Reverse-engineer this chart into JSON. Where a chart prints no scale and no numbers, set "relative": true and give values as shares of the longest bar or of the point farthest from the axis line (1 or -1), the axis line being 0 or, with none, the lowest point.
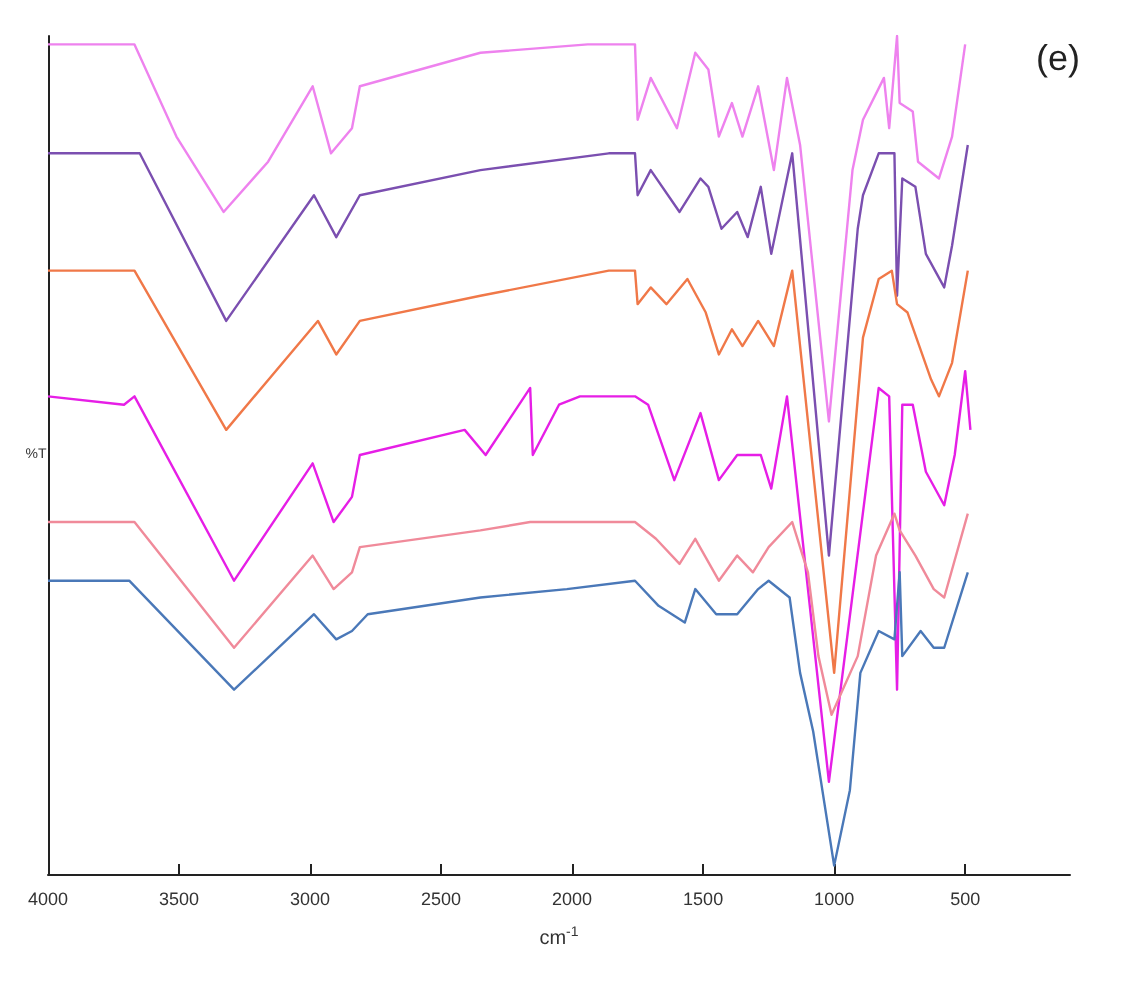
{
  "chart_data": {
    "type": "line",
    "relative": true,
    "xlabel": "cm$^{-1}$",
    "ylabel": "%T",
    "annotations": [
      "(e)"
    ],
    "xlim": [
      4000,
      100
    ],
    "xticks": [
      4000,
      3500,
      3000,
      2500,
      2000,
      1500,
      1000,
      500
    ],
    "marker": "none",
    "series": [
      {
        "color": "#ee82ee",
        "x": [
          4000,
          3670,
          3510,
          3330,
          3160,
          2990,
          2920,
          2840,
          2810,
          2350,
          1940,
          1760,
          1750,
          1700,
          1600,
          1530,
          1480,
          1440,
          1390,
          1350,
          1290,
          1230,
          1180,
          1130,
          1020,
          930,
          890,
          810,
          790,
          760,
          750,
          700,
          680,
          600,
          550,
          500
        ],
        "values": [
          0.99,
          0.99,
          0.88,
          0.79,
          0.85,
          0.94,
          0.86,
          0.89,
          0.94,
          0.98,
          0.99,
          0.99,
          0.9,
          0.95,
          0.89,
          0.98,
          0.96,
          0.88,
          0.92,
          0.88,
          0.94,
          0.84,
          0.95,
          0.87,
          0.54,
          0.84,
          0.9,
          0.95,
          0.89,
          1.0,
          0.92,
          0.91,
          0.85,
          0.83,
          0.88,
          0.99
        ]
      },
      {
        "color": "#7b4fb0",
        "x": [
          4000,
          3650,
          3320,
          2985,
          2900,
          2810,
          2350,
          1860,
          1760,
          1750,
          1700,
          1590,
          1510,
          1480,
          1430,
          1370,
          1330,
          1280,
          1240,
          1160,
          1020,
          910,
          890,
          830,
          770,
          760,
          740,
          690,
          650,
          580,
          550,
          490
        ],
        "values": [
          0.86,
          0.86,
          0.66,
          0.81,
          0.76,
          0.81,
          0.84,
          0.86,
          0.86,
          0.81,
          0.84,
          0.79,
          0.83,
          0.82,
          0.77,
          0.79,
          0.76,
          0.82,
          0.74,
          0.86,
          0.38,
          0.77,
          0.81,
          0.86,
          0.86,
          0.69,
          0.83,
          0.82,
          0.74,
          0.7,
          0.75,
          0.87
        ]
      },
      {
        "color": "#f07848",
        "x": [
          4000,
          3670,
          3320,
          2970,
          2900,
          2810,
          2350,
          1860,
          1760,
          1750,
          1700,
          1640,
          1560,
          1490,
          1440,
          1390,
          1350,
          1290,
          1230,
          1160,
          1000,
          890,
          830,
          780,
          760,
          720,
          630,
          600,
          550,
          490
        ],
        "values": [
          0.72,
          0.72,
          0.53,
          0.66,
          0.62,
          0.66,
          0.69,
          0.72,
          0.72,
          0.68,
          0.7,
          0.68,
          0.71,
          0.67,
          0.62,
          0.65,
          0.63,
          0.66,
          0.63,
          0.72,
          0.24,
          0.64,
          0.71,
          0.72,
          0.68,
          0.67,
          0.59,
          0.57,
          0.61,
          0.72
        ]
      },
      {
        "color": "#e61ee6",
        "x": [
          4000,
          3710,
          3670,
          3290,
          2990,
          2910,
          2840,
          2810,
          2410,
          2330,
          2160,
          2150,
          2050,
          1970,
          1760,
          1710,
          1610,
          1510,
          1440,
          1370,
          1280,
          1240,
          1180,
          1020,
          830,
          790,
          760,
          740,
          700,
          650,
          580,
          540,
          500,
          480
        ],
        "values": [
          0.57,
          0.56,
          0.57,
          0.35,
          0.49,
          0.42,
          0.45,
          0.5,
          0.53,
          0.5,
          0.58,
          0.5,
          0.56,
          0.57,
          0.57,
          0.56,
          0.47,
          0.55,
          0.47,
          0.5,
          0.5,
          0.46,
          0.57,
          0.11,
          0.58,
          0.57,
          0.22,
          0.56,
          0.56,
          0.48,
          0.44,
          0.5,
          0.6,
          0.53
        ]
      },
      {
        "color": "#f08a9a",
        "x": [
          4000,
          3670,
          3290,
          2990,
          2910,
          2840,
          2810,
          2350,
          2160,
          1860,
          1760,
          1680,
          1590,
          1530,
          1440,
          1370,
          1310,
          1250,
          1160,
          1100,
          1060,
          1010,
          910,
          840,
          770,
          750,
          690,
          620,
          580,
          490
        ],
        "values": [
          0.42,
          0.42,
          0.27,
          0.38,
          0.34,
          0.36,
          0.39,
          0.41,
          0.42,
          0.42,
          0.42,
          0.4,
          0.37,
          0.4,
          0.35,
          0.38,
          0.36,
          0.39,
          0.42,
          0.36,
          0.26,
          0.19,
          0.26,
          0.38,
          0.43,
          0.41,
          0.38,
          0.34,
          0.33,
          0.43
        ]
      },
      {
        "color": "#4a78b8",
        "x": [
          4000,
          3690,
          3290,
          2985,
          2900,
          2840,
          2780,
          2350,
          2020,
          1760,
          1670,
          1570,
          1530,
          1450,
          1370,
          1290,
          1250,
          1170,
          1130,
          1080,
          1000,
          940,
          900,
          830,
          770,
          750,
          740,
          670,
          620,
          580,
          490
        ],
        "values": [
          0.35,
          0.35,
          0.22,
          0.31,
          0.28,
          0.29,
          0.31,
          0.33,
          0.34,
          0.35,
          0.32,
          0.3,
          0.34,
          0.31,
          0.31,
          0.34,
          0.35,
          0.33,
          0.24,
          0.17,
          0.01,
          0.1,
          0.24,
          0.29,
          0.28,
          0.36,
          0.26,
          0.29,
          0.27,
          0.27,
          0.36
        ]
      }
    ]
  }
}
